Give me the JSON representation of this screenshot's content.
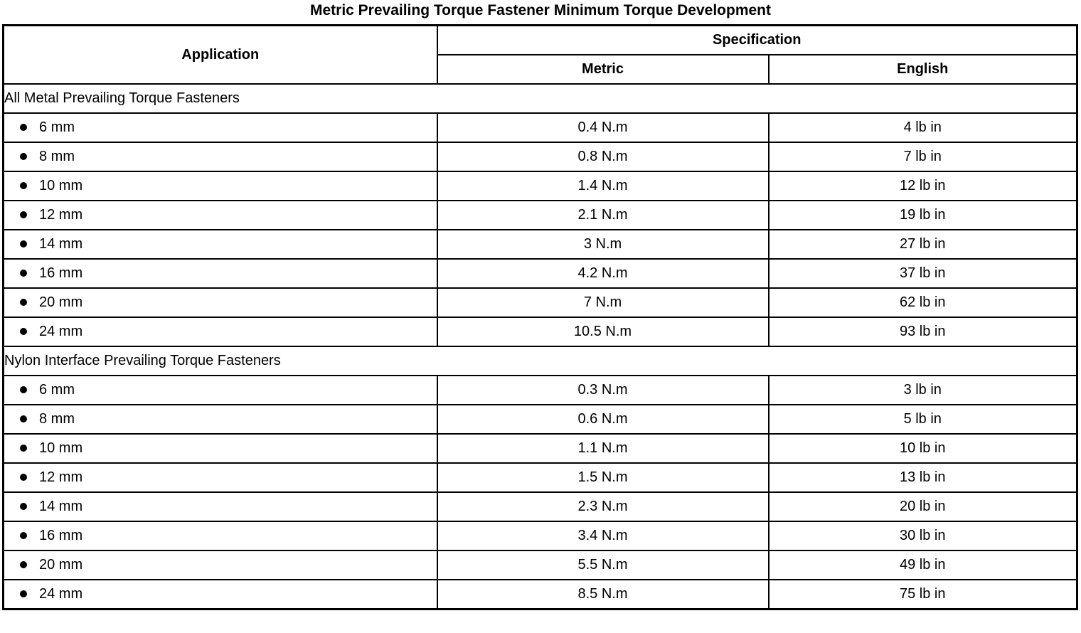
{
  "page": {
    "title": "Metric Prevailing Torque Fastener Minimum Torque Development"
  },
  "icons": {
    "bullet": "filled-circle"
  },
  "table": {
    "headers": {
      "application": "Application",
      "specification": "Specification",
      "metric": "Metric",
      "english": "English"
    },
    "sections": [
      {
        "label": "All Metal Prevailing Torque Fasteners",
        "rows": [
          {
            "application": "6 mm",
            "metric": "0.4 N.m",
            "english": "4 lb in"
          },
          {
            "application": "8 mm",
            "metric": "0.8 N.m",
            "english": "7 lb in"
          },
          {
            "application": "10 mm",
            "metric": "1.4 N.m",
            "english": "12 lb in"
          },
          {
            "application": "12 mm",
            "metric": "2.1 N.m",
            "english": "19 lb in"
          },
          {
            "application": "14 mm",
            "metric": "3 N.m",
            "english": "27 lb in"
          },
          {
            "application": "16 mm",
            "metric": "4.2 N.m",
            "english": "37 lb in"
          },
          {
            "application": "20 mm",
            "metric": "7 N.m",
            "english": "62 lb in"
          },
          {
            "application": "24 mm",
            "metric": "10.5 N.m",
            "english": "93 lb in"
          }
        ]
      },
      {
        "label": "Nylon Interface Prevailing Torque Fasteners",
        "rows": [
          {
            "application": "6 mm",
            "metric": "0.3 N.m",
            "english": "3 lb in"
          },
          {
            "application": "8 mm",
            "metric": "0.6 N.m",
            "english": "5 lb in"
          },
          {
            "application": "10 mm",
            "metric": "1.1 N.m",
            "english": "10 lb in"
          },
          {
            "application": "12 mm",
            "metric": "1.5 N.m",
            "english": "13 lb in"
          },
          {
            "application": "14 mm",
            "metric": "2.3 N.m",
            "english": "20 lb in"
          },
          {
            "application": "16 mm",
            "metric": "3.4 N.m",
            "english": "30 lb in"
          },
          {
            "application": "20 mm",
            "metric": "5.5 N.m",
            "english": "49 lb in"
          },
          {
            "application": "24 mm",
            "metric": "8.5 N.m",
            "english": "75 lb in"
          }
        ]
      }
    ]
  }
}
